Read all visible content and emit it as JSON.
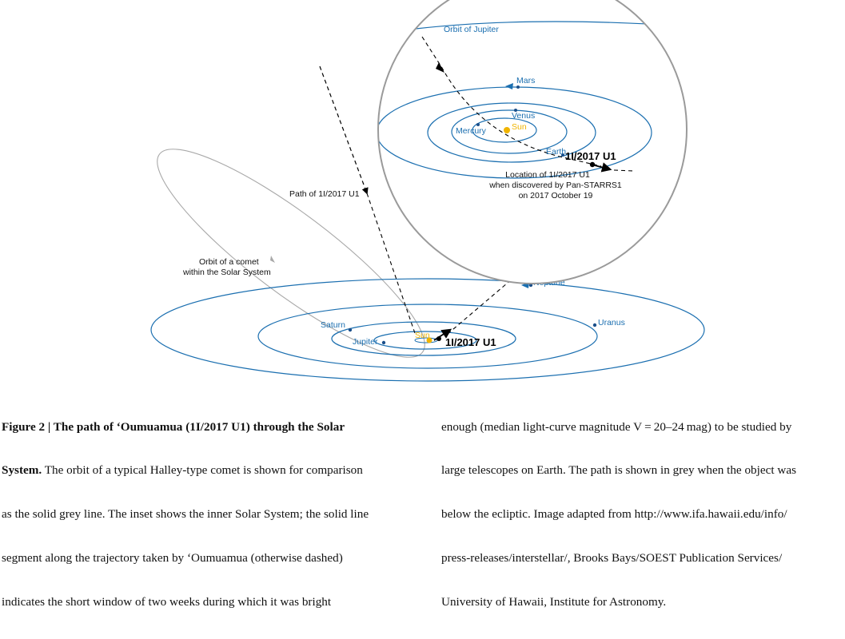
{
  "figure": {
    "inset": {
      "orbit_of_jupiter": "Orbit of Jupiter",
      "mars": "Mars",
      "venus": "Venus",
      "mercury": "Mercury",
      "sun": "Sun",
      "earth": "Earth",
      "object_label": "1I/2017 U1",
      "discovery_note": [
        "Location of 1I/2017 U1",
        "when discovered by Pan-STARRS1",
        "on 2017 October 19"
      ]
    },
    "outer": {
      "path_label": "Path of 1I/2017 U1",
      "comet_orbit": [
        "Orbit of a comet",
        "within the Solar System"
      ],
      "neptune": "Neptune",
      "uranus": "Uranus",
      "saturn": "Saturn",
      "jupiter": "Jupiter",
      "sun": "Sun",
      "object_label": "1I/2017 U1"
    },
    "colors": {
      "orbit_blue": "#1b6fb0",
      "sun_yellow": "#f0b400",
      "comet_grey": "#999999",
      "path_black": "#000000"
    }
  },
  "caption": {
    "left": {
      "title_lines": [
        "Figure 2 | The path of ‘Oumuamua (1I/2017 U1) through the Solar",
        "System."
      ],
      "line2_rest": " The orbit of a typical Halley-type comet is shown for comparison",
      "lines": [
        "as the solid grey line. The inset shows the inner Solar System; the solid line",
        "segment along the trajectory taken by ‘Oumuamua (otherwise dashed)",
        "indicates the short window of two weeks during which it was bright"
      ]
    },
    "right": {
      "lines": [
        "enough (median light-curve magnitude V = 20–24 mag) to be studied by",
        "large telescopes on Earth. The path is shown in grey when the object was",
        "below the ecliptic. Image adapted from http://www.ifa.hawaii.edu/info/",
        "press-releases/interstellar/, Brooks Bays/SOEST Publication Services/",
        "University of Hawaii, Institute for Astronomy."
      ]
    }
  }
}
